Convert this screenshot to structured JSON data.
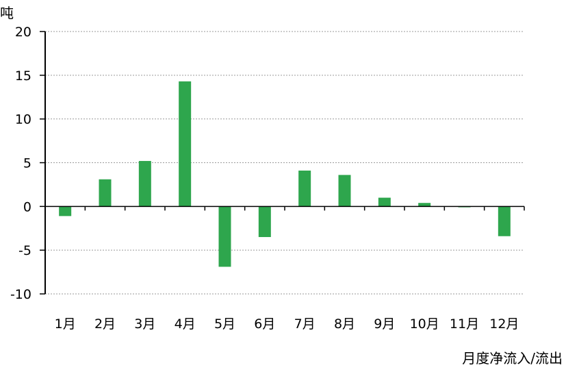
{
  "chart_data": {
    "type": "bar",
    "ylabel": "吨",
    "xlabel": "月度净流入/流出",
    "categories": [
      "1月",
      "2月",
      "3月",
      "4月",
      "5月",
      "6月",
      "7月",
      "8月",
      "9月",
      "10月",
      "11月",
      "12月"
    ],
    "series": [
      {
        "values": [
          -1.1,
          3.1,
          5.2,
          14.3,
          -6.9,
          -3.5,
          4.1,
          3.6,
          1.0,
          0.4,
          -0.1,
          -3.4
        ]
      }
    ],
    "ylim": [
      -10,
      20
    ],
    "yticks": [
      20,
      15,
      10,
      5,
      0,
      -5,
      -10
    ],
    "grid": true,
    "bar_color": "#2ea64d"
  }
}
